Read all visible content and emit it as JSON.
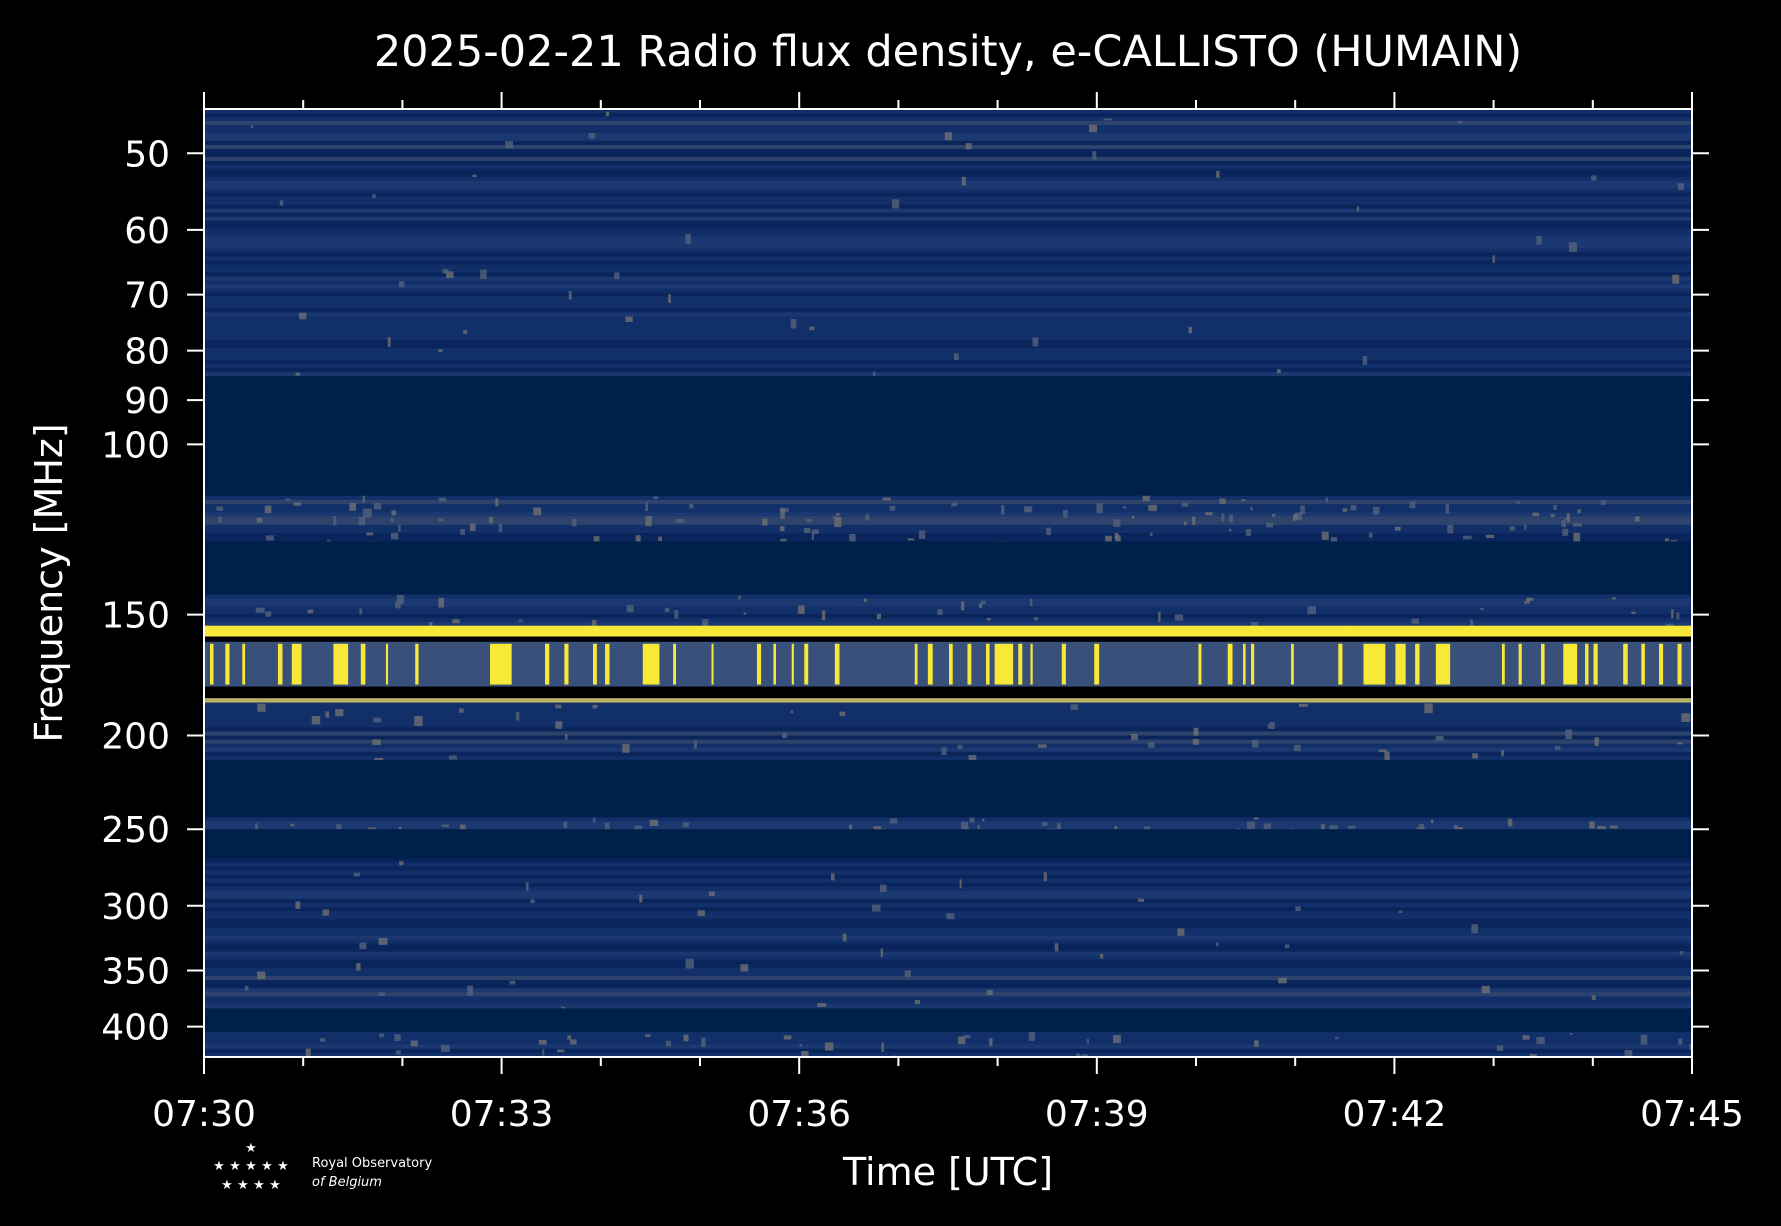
{
  "chart_data": {
    "type": "heatmap",
    "title": "2025-02-21 Radio flux density, e-CALLISTO (HUMAIN)",
    "xlabel": "Time [UTC]",
    "ylabel": "Frequency [MHz]",
    "x_range": [
      "07:30",
      "07:45"
    ],
    "x_ticks": [
      "07:30",
      "07:33",
      "07:36",
      "07:39",
      "07:42",
      "07:45"
    ],
    "y_scale": "log",
    "y_range": [
      45,
      430
    ],
    "y_ticks": [
      50,
      60,
      70,
      80,
      90,
      100,
      150,
      200,
      250,
      300,
      350,
      400
    ],
    "colormap": "cividis",
    "colors": {
      "background": "#000000",
      "low": "#00204c",
      "mid": "#4a5b7e",
      "high": "#f8e838"
    },
    "bands": [
      {
        "range_mhz": [
          45,
          85
        ],
        "level": "noise"
      },
      {
        "range_mhz": [
          85,
          113
        ],
        "level": "low"
      },
      {
        "range_mhz": [
          113,
          126
        ],
        "level": "noise-bursty"
      },
      {
        "range_mhz": [
          126,
          143
        ],
        "level": "low"
      },
      {
        "range_mhz": [
          143,
          154
        ],
        "level": "noise"
      },
      {
        "range_mhz": [
          154,
          158
        ],
        "level": "saturated"
      },
      {
        "range_mhz": [
          160,
          178
        ],
        "level": "intermittent-bright"
      },
      {
        "range_mhz": [
          183,
          185
        ],
        "level": "bright-line"
      },
      {
        "range_mhz": [
          185,
          212
        ],
        "level": "noise"
      },
      {
        "range_mhz": [
          212,
          243
        ],
        "level": "low"
      },
      {
        "range_mhz": [
          243,
          250
        ],
        "level": "noise"
      },
      {
        "range_mhz": [
          250,
          268
        ],
        "level": "low"
      },
      {
        "range_mhz": [
          268,
          383
        ],
        "level": "noise"
      },
      {
        "range_mhz": [
          383,
          405
        ],
        "level": "low"
      },
      {
        "range_mhz": [
          405,
          430
        ],
        "level": "noise"
      }
    ]
  },
  "logo": {
    "line1": "Royal Observatory",
    "line2": "of Belgium"
  }
}
